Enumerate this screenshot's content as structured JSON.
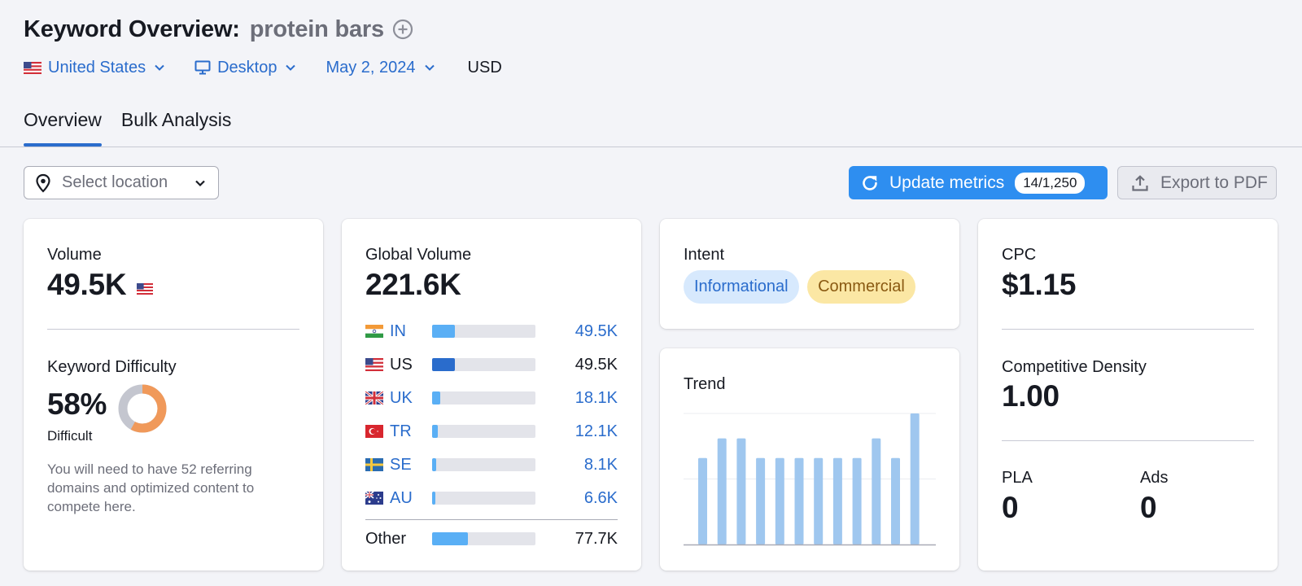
{
  "header": {
    "title": "Keyword Overview:",
    "keyword": "protein bars"
  },
  "filters": {
    "country": "United States",
    "device": "Desktop",
    "date": "May 2, 2024",
    "currency": "USD"
  },
  "tabs": [
    {
      "label": "Overview",
      "active": true
    },
    {
      "label": "Bulk Analysis",
      "active": false
    }
  ],
  "location_select": {
    "placeholder": "Select location"
  },
  "update_button": {
    "label": "Update metrics",
    "count": "14/1,250"
  },
  "export_button": {
    "label": "Export to PDF"
  },
  "volume_card": {
    "volume_label": "Volume",
    "volume_value": "49.5K",
    "kd_label": "Keyword Difficulty",
    "kd_value": "58%",
    "kd_level": "Difficult",
    "kd_percent": 58,
    "kd_description": "You will need to have 52 referring domains and optimized content to compete here."
  },
  "global_card": {
    "label": "Global Volume",
    "value": "221.6K",
    "countries": [
      {
        "code": "IN",
        "value": "49.5K",
        "share": 0.22,
        "flag": "india-flag"
      },
      {
        "code": "US",
        "value": "49.5K",
        "share": 0.22,
        "flag": "us-flag"
      },
      {
        "code": "UK",
        "value": "18.1K",
        "share": 0.08,
        "flag": "uk-flag"
      },
      {
        "code": "TR",
        "value": "12.1K",
        "share": 0.055,
        "flag": "turkey-flag"
      },
      {
        "code": "SE",
        "value": "8.1K",
        "share": 0.037,
        "flag": "sweden-flag"
      },
      {
        "code": "AU",
        "value": "6.6K",
        "share": 0.03,
        "flag": "australia-flag"
      }
    ],
    "other": {
      "label": "Other",
      "value": "77.7K",
      "share": 0.35
    }
  },
  "intent_card": {
    "label": "Intent",
    "badges": [
      "Informational",
      "Commercial"
    ]
  },
  "trend_card": {
    "label": "Trend"
  },
  "chart_data": {
    "type": "bar",
    "title": "Trend",
    "categories": [
      "1",
      "2",
      "3",
      "4",
      "5",
      "6",
      "7",
      "8",
      "9",
      "10",
      "11",
      "12"
    ],
    "values": [
      0.66,
      0.81,
      0.81,
      0.66,
      0.66,
      0.66,
      0.66,
      0.66,
      0.66,
      0.81,
      0.66,
      1.0
    ],
    "ylim": [
      0,
      1
    ],
    "grid": true,
    "color": "#9fc7ef"
  },
  "cpc_card": {
    "cpc_label": "CPC",
    "cpc_value": "$1.15",
    "density_label": "Competitive Density",
    "density_value": "1.00",
    "pla_label": "PLA",
    "pla_value": "0",
    "ads_label": "Ads",
    "ads_value": "0"
  },
  "colors": {
    "accent": "#2a6ccc",
    "primary_button": "#2e8ef0",
    "kd_orange": "#f0995a",
    "kd_gray": "#c4c6cf",
    "bar_light_blue": "#5aaff5",
    "bar_dark_blue": "#2a6ccc"
  }
}
